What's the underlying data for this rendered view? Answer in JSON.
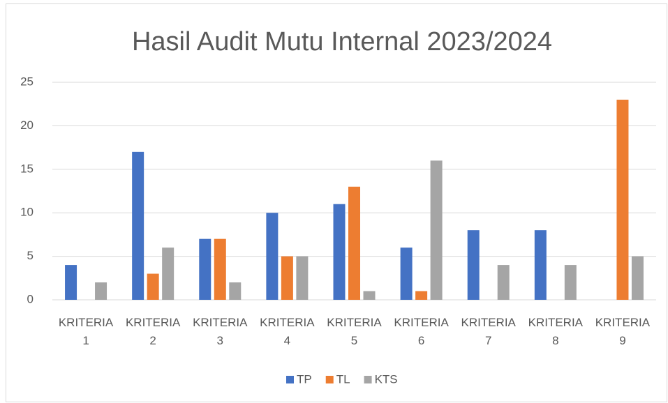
{
  "chart_data": {
    "type": "bar",
    "title": "Hasil Audit Mutu Internal 2023/2024",
    "categories": [
      "KRITERIA 1",
      "KRITERIA 2",
      "KRITERIA 3",
      "KRITERIA 4",
      "KRITERIA 5",
      "KRITERIA 6",
      "KRITERIA 7",
      "KRITERIA 8",
      "KRITERIA 9"
    ],
    "series": [
      {
        "name": "TP",
        "color": "#4472c4",
        "values": [
          4,
          17,
          7,
          10,
          11,
          6,
          8,
          8,
          0
        ]
      },
      {
        "name": "TL",
        "color": "#ed7d31",
        "values": [
          0,
          3,
          7,
          5,
          13,
          1,
          0,
          0,
          23
        ]
      },
      {
        "name": "KTS",
        "color": "#a5a5a5",
        "values": [
          2,
          6,
          2,
          5,
          1,
          16,
          4,
          4,
          5
        ]
      }
    ],
    "ylim": [
      0,
      25
    ],
    "yticks": [
      0,
      5,
      10,
      15,
      20,
      25
    ],
    "grid": true,
    "legend": "bottom"
  }
}
